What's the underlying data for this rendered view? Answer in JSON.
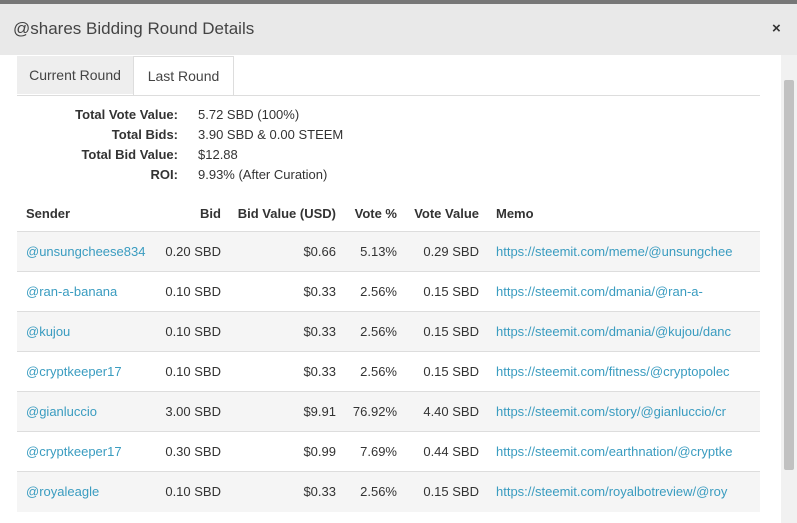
{
  "header": {
    "title": "@shares Bidding Round Details",
    "close": "×"
  },
  "tabs": [
    "Current Round",
    "Last Round"
  ],
  "summary": [
    {
      "label": "Total Vote Value:",
      "value": "5.72 SBD (100%)"
    },
    {
      "label": "Total Bids:",
      "value": "3.90 SBD & 0.00 STEEM"
    },
    {
      "label": "Total Bid Value:",
      "value": "$12.88"
    },
    {
      "label": "ROI:",
      "value": "9.93% (After Curation)"
    }
  ],
  "table": {
    "headers": [
      "Sender",
      "Bid",
      "Bid Value (USD)",
      "Vote %",
      "Vote Value",
      "Memo"
    ],
    "rows": [
      [
        "@unsungcheese834",
        "0.20 SBD",
        "$0.66",
        "5.13%",
        "0.29 SBD",
        "https://steemit.com/meme/@unsungchee"
      ],
      [
        "@ran-a-banana",
        "0.10 SBD",
        "$0.33",
        "2.56%",
        "0.15 SBD",
        "https://steemit.com/dmania/@ran-a-"
      ],
      [
        "@kujou",
        "0.10 SBD",
        "$0.33",
        "2.56%",
        "0.15 SBD",
        "https://steemit.com/dmania/@kujou/danc"
      ],
      [
        "@cryptkeeper17",
        "0.10 SBD",
        "$0.33",
        "2.56%",
        "0.15 SBD",
        "https://steemit.com/fitness/@cryptopolec"
      ],
      [
        "@gianluccio",
        "3.00 SBD",
        "$9.91",
        "76.92%",
        "4.40 SBD",
        "https://steemit.com/story/@gianluccio/cr"
      ],
      [
        "@cryptkeeper17",
        "0.30 SBD",
        "$0.99",
        "7.69%",
        "0.44 SBD",
        "https://steemit.com/earthnation/@cryptke"
      ],
      [
        "@royaleagle",
        "0.10 SBD",
        "$0.33",
        "2.56%",
        "0.15 SBD",
        "https://steemit.com/royalbotreview/@roy"
      ]
    ]
  }
}
